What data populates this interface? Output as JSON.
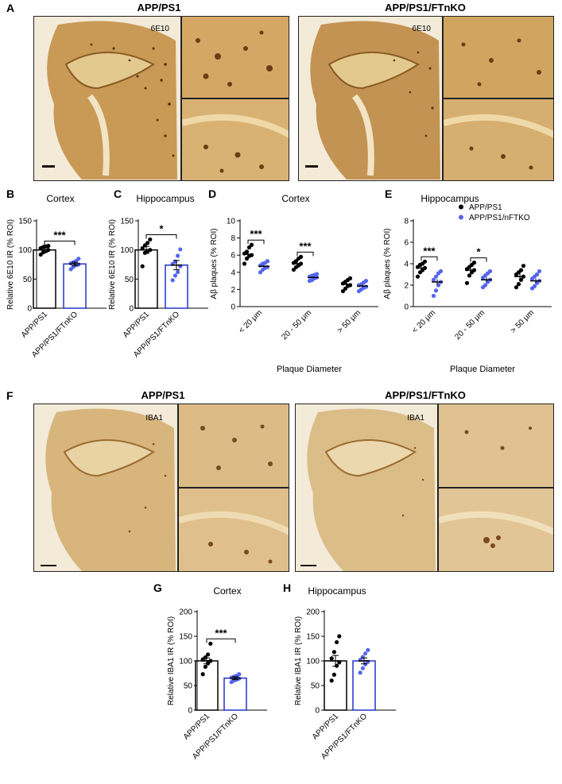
{
  "panel_letters": {
    "A": "A",
    "B": "B",
    "C": "C",
    "D": "D",
    "E": "E",
    "F": "F",
    "G": "G",
    "H": "H"
  },
  "section_a": {
    "left_title": "APP/PS1",
    "right_title": "APP/PS1/FTnKO",
    "stain_left": "6E10",
    "stain_right": "6E10"
  },
  "section_f": {
    "left_title": "APP/PS1",
    "right_title": "APP/PS1/FTnKO",
    "stain_left": "IBA1",
    "stain_right": "IBA1"
  },
  "colors": {
    "wt": "#000000",
    "ko": "#2233cc",
    "ko_points": "#5566ee",
    "tissue": "#c89a55",
    "tissue_dark": "#6b3d14",
    "bg_stain": "#f3ead8"
  },
  "chart_data": [
    {
      "id": "B",
      "type": "bar",
      "title": "Cortex",
      "ylabel": "Relative 6E10 IR (% ROI)",
      "ylim": [
        0,
        150
      ],
      "yticks": [
        0,
        50,
        100,
        150
      ],
      "categories": [
        "APP/PS1",
        "APP/PS1/FTnKO"
      ],
      "values": [
        100,
        76
      ],
      "sem": [
        4,
        3
      ],
      "points": [
        [
          92,
          96,
          98,
          100,
          103,
          105,
          106,
          107
        ],
        [
          67,
          71,
          74,
          75,
          77,
          79,
          81,
          85
        ]
      ],
      "significance": "***"
    },
    {
      "id": "C",
      "type": "bar",
      "title": "Hippocampus",
      "ylabel": "Relative 6E10 IR (% ROI)",
      "ylim": [
        0,
        150
      ],
      "yticks": [
        0,
        50,
        100,
        150
      ],
      "categories": [
        "APP/PS1",
        "APP/PS1/FTnKO"
      ],
      "values": [
        100,
        74
      ],
      "sem": [
        6,
        8
      ],
      "points": [
        [
          72,
          95,
          98,
          100,
          103,
          108,
          112,
          118
        ],
        [
          48,
          56,
          62,
          72,
          76,
          80,
          90,
          101
        ]
      ],
      "significance": "*"
    },
    {
      "id": "D",
      "type": "scatter",
      "title": "Cortex",
      "ylabel": "Aβ plaques (% ROI)",
      "xlabel": "Plaque Diameter",
      "ylim": [
        0,
        10
      ],
      "yticks": [
        0,
        2,
        4,
        6,
        8,
        10
      ],
      "categories": [
        "< 20 μm",
        "20 - 50 μm",
        "> 50 μm"
      ],
      "series": [
        {
          "values": [
            6.1,
            5.0,
            2.6
          ],
          "sem": [
            0.3,
            0.2,
            0.2
          ],
          "points": [
            [
              5.0,
              5.6,
              5.9,
              6.0,
              6.2,
              6.4,
              6.9,
              7.2
            ],
            [
              4.3,
              4.6,
              4.8,
              5.0,
              5.1,
              5.3,
              5.6,
              5.8
            ],
            [
              1.8,
              2.1,
              2.4,
              2.5,
              2.7,
              2.9,
              3.1,
              3.3
            ]
          ]
        },
        {
          "values": [
            4.7,
            3.4,
            2.4
          ],
          "sem": [
            0.15,
            0.1,
            0.15
          ],
          "points": [
            [
              4.0,
              4.3,
              4.5,
              4.6,
              4.8,
              5.0,
              5.1,
              5.3
            ],
            [
              3.0,
              3.1,
              3.3,
              3.4,
              3.5,
              3.6,
              3.7,
              3.8
            ],
            [
              1.8,
              2.0,
              2.2,
              2.3,
              2.5,
              2.6,
              2.8,
              3.0
            ]
          ]
        }
      ],
      "significance": [
        "***",
        "***",
        ""
      ]
    },
    {
      "id": "E",
      "type": "scatter",
      "title": "Hippocampus",
      "ylabel": "Aβ plaques (% ROI)",
      "xlabel": "Plaque Diameter",
      "ylim": [
        0,
        8
      ],
      "yticks": [
        0,
        2,
        4,
        6,
        8
      ],
      "categories": [
        "< 20 μm",
        "20 - 50 μm",
        "> 50 μm"
      ],
      "series": [
        {
          "name": "APP/PS1",
          "values": [
            3.6,
            3.4,
            2.8
          ],
          "sem": [
            0.2,
            0.25,
            0.3
          ],
          "points": [
            [
              2.8,
              3.2,
              3.4,
              3.6,
              3.7,
              3.9,
              4.0,
              4.2
            ],
            [
              2.2,
              2.9,
              3.2,
              3.4,
              3.5,
              3.7,
              3.9,
              4.1
            ],
            [
              1.8,
              2.1,
              2.5,
              2.8,
              3.0,
              3.2,
              3.4,
              3.8
            ]
          ]
        },
        {
          "name": "APP/PS1/nFTKO",
          "values": [
            2.3,
            2.5,
            2.4
          ],
          "sem": [
            0.25,
            0.2,
            0.2
          ],
          "points": [
            [
              1.0,
              1.5,
              2.0,
              2.3,
              2.5,
              2.8,
              3.1,
              3.3
            ],
            [
              1.8,
              2.0,
              2.3,
              2.5,
              2.7,
              2.9,
              3.1,
              3.3
            ],
            [
              1.7,
              1.9,
              2.2,
              2.4,
              2.6,
              2.8,
              3.0,
              3.3
            ]
          ]
        }
      ],
      "significance": [
        "***",
        "*",
        ""
      ]
    },
    {
      "id": "G",
      "type": "bar",
      "title": "Cortex",
      "ylabel": "Relative IBA1 IR (% ROI)",
      "ylim": [
        0,
        200
      ],
      "yticks": [
        0,
        50,
        100,
        150,
        200
      ],
      "categories": [
        "APP/PS1",
        "APP/PS1/FTnKO"
      ],
      "values": [
        100,
        65
      ],
      "sem": [
        6,
        3
      ],
      "points": [
        [
          73,
          88,
          95,
          100,
          103,
          107,
          113,
          135
        ],
        [
          57,
          60,
          62,
          64,
          66,
          68,
          70,
          73
        ]
      ],
      "significance": "***"
    },
    {
      "id": "H",
      "type": "bar",
      "title": "Hippocampus",
      "ylabel": "Relative IBA1 IR (% ROI)",
      "ylim": [
        0,
        200
      ],
      "yticks": [
        0,
        50,
        100,
        150,
        200
      ],
      "categories": [
        "APP/PS1",
        "APP/PS1/FTnKO"
      ],
      "values": [
        100,
        100
      ],
      "sem": [
        11,
        6
      ],
      "points": [
        [
          60,
          72,
          90,
          97,
          105,
          118,
          138,
          150
        ],
        [
          76,
          85,
          93,
          98,
          102,
          108,
          115,
          122
        ]
      ],
      "significance": ""
    }
  ]
}
